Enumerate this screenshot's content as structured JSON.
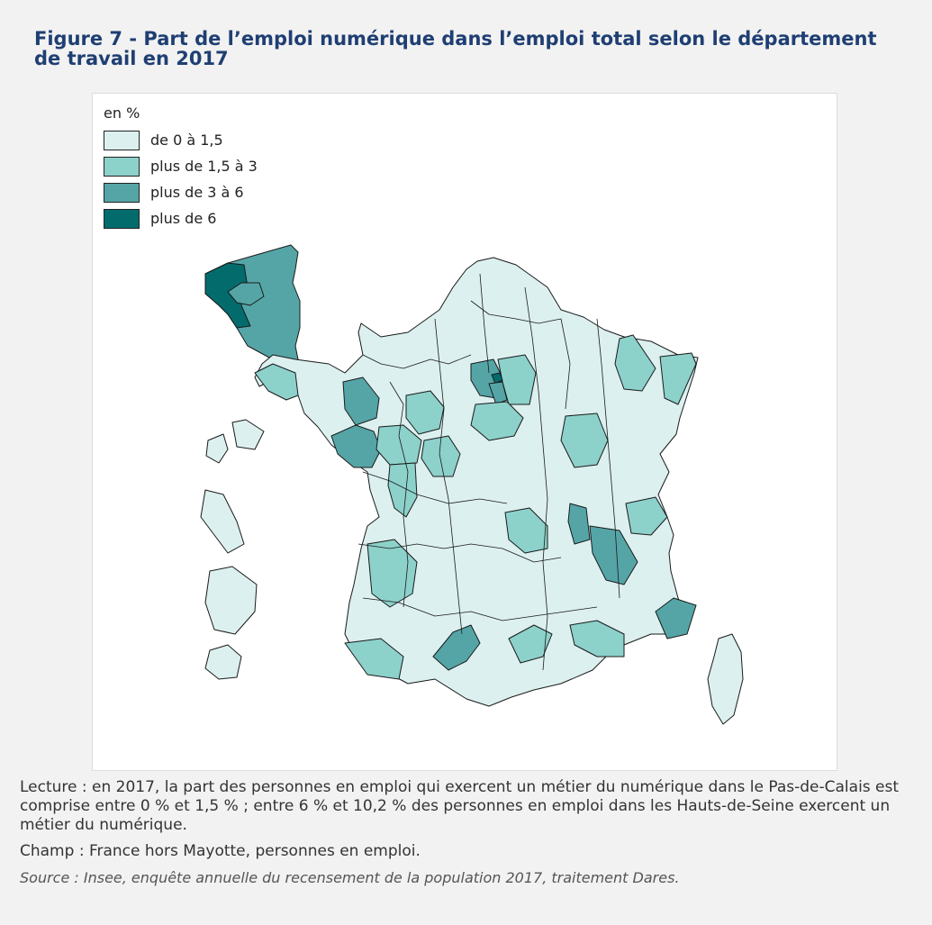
{
  "title": "Figure 7 - Part de l’emploi numérique dans l’emploi total selon le département de travail en 2017",
  "legend": {
    "title": "en %",
    "classes": [
      {
        "label": "de 0 à 1,5",
        "color": "#dcf0ef"
      },
      {
        "label": "plus de 1,5 à 3",
        "color": "#8dd1cb"
      },
      {
        "label": "plus de 3 à 6",
        "color": "#55a5a7"
      },
      {
        "label": "plus de 6",
        "color": "#046b6d"
      }
    ]
  },
  "notes": {
    "lecture": "Lecture : en 2017, la part des personnes en emploi qui exercent un métier du numérique dans le Pas-de-Calais est comprise entre 0 % et 1,5 % ; entre 6 % et 10,2 % des personnes en emploi dans les Hauts-de-Seine exercent un métier du numérique.",
    "champ": "Champ : France hors Mayotte, personnes en emploi.",
    "source": "Source : Insee, enquête annuelle du recensement de la population 2017, traitement Dares."
  },
  "colors": {
    "title": "#1f3f73",
    "border": "#1a1a1a"
  },
  "map_data": {
    "type": "choropleth",
    "unit": "en %"
  }
}
